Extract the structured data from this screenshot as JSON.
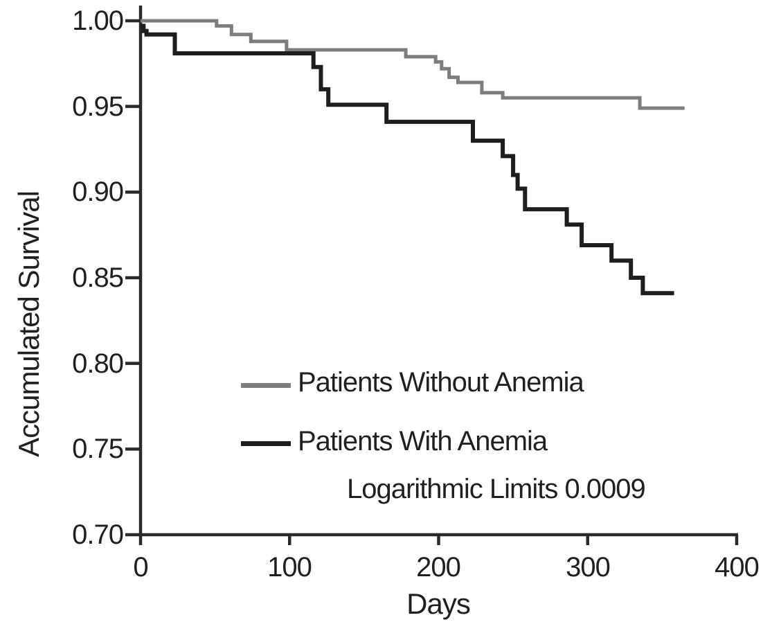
{
  "figure": {
    "background": "#ffffff",
    "text_color": "#231f20",
    "axis_color": "#2a2a2a"
  },
  "chart_data": {
    "type": "line",
    "subtype": "kaplan-meier-step-survival",
    "title": "",
    "xlabel": "Days",
    "ylabel": "Accumulated Survival",
    "xlim": [
      0,
      400
    ],
    "ylim": [
      0.7,
      1.0
    ],
    "grid": false,
    "legend_position": "inside-lower-left",
    "xticks": [
      "0",
      "100",
      "200",
      "300",
      "400"
    ],
    "xtick_values": [
      0,
      100,
      200,
      300,
      400
    ],
    "yticks": [
      "1.00",
      "0.95",
      "0.90",
      "0.85",
      "0.80",
      "0.75",
      "0.70"
    ],
    "ytick_values": [
      1.0,
      0.95,
      0.9,
      0.85,
      0.8,
      0.75,
      0.7
    ],
    "annotation": "Logarithmic Limits 0.0009",
    "series": [
      {
        "name": "Patients Without Anemia",
        "color": "#7d7d7d",
        "line_width": 5,
        "step": "after",
        "points": [
          [
            0,
            1.0
          ],
          [
            51,
            0.997
          ],
          [
            61,
            0.992
          ],
          [
            74,
            0.988
          ],
          [
            98,
            0.983
          ],
          [
            178,
            0.979
          ],
          [
            198,
            0.976
          ],
          [
            202,
            0.972
          ],
          [
            207,
            0.967
          ],
          [
            213,
            0.964
          ],
          [
            229,
            0.958
          ],
          [
            243,
            0.955
          ],
          [
            335,
            0.949
          ],
          [
            365,
            0.949
          ]
        ]
      },
      {
        "name": "Patients With Anemia",
        "color": "#1e1e1e",
        "line_width": 6,
        "step": "after",
        "points": [
          [
            0,
            0.997
          ],
          [
            2,
            0.994
          ],
          [
            4,
            0.992
          ],
          [
            23,
            0.981
          ],
          [
            116,
            0.973
          ],
          [
            121,
            0.96
          ],
          [
            126,
            0.951
          ],
          [
            165,
            0.941
          ],
          [
            223,
            0.93
          ],
          [
            243,
            0.921
          ],
          [
            250,
            0.91
          ],
          [
            253,
            0.902
          ],
          [
            258,
            0.89
          ],
          [
            286,
            0.881
          ],
          [
            296,
            0.869
          ],
          [
            316,
            0.86
          ],
          [
            329,
            0.85
          ],
          [
            337,
            0.841
          ],
          [
            358,
            0.841
          ]
        ]
      }
    ]
  }
}
